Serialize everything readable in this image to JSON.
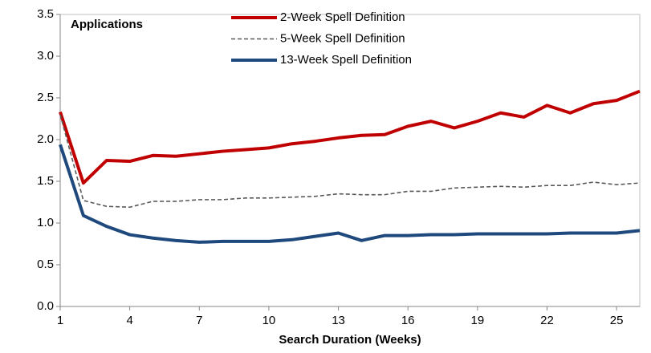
{
  "chart_data": {
    "type": "line",
    "annotation": "Applications",
    "x_label": "Search Duration (Weeks)",
    "x": [
      1,
      2,
      3,
      4,
      5,
      6,
      7,
      8,
      9,
      10,
      11,
      12,
      13,
      14,
      15,
      16,
      17,
      18,
      19,
      20,
      21,
      22,
      23,
      24,
      25,
      26
    ],
    "xlim": [
      1,
      26
    ],
    "xticks": [
      1,
      4,
      7,
      10,
      13,
      16,
      19,
      22,
      25
    ],
    "ylim": [
      0,
      3.5
    ],
    "yticks": [
      {
        "value": 0,
        "label": "0.0"
      },
      0.5,
      {
        "value": 1,
        "label": "1.0"
      },
      1.5,
      {
        "value": 2,
        "label": "2.0"
      },
      2.5,
      {
        "value": 3,
        "label": "3.0"
      },
      3.5
    ],
    "grid": false,
    "series": [
      {
        "name": "2-Week Spell Definition",
        "color": "#c00000",
        "dashed": false,
        "values": [
          2.33,
          1.48,
          1.75,
          1.74,
          1.81,
          1.8,
          1.83,
          1.86,
          1.88,
          1.9,
          1.95,
          1.98,
          2.02,
          2.05,
          2.06,
          2.16,
          2.22,
          2.14,
          2.22,
          2.32,
          2.27,
          2.41,
          2.32,
          2.43,
          2.47,
          2.58
        ]
      },
      {
        "name": "5-Week Spell Definition",
        "color": "#595959",
        "dashed": true,
        "values": [
          2.3,
          1.27,
          1.2,
          1.19,
          1.26,
          1.26,
          1.28,
          1.28,
          1.3,
          1.3,
          1.31,
          1.32,
          1.35,
          1.34,
          1.34,
          1.38,
          1.38,
          1.42,
          1.43,
          1.44,
          1.43,
          1.45,
          1.45,
          1.49,
          1.46,
          1.48
        ]
      },
      {
        "name": "13-Week Spell Definition",
        "color": "#1f497d",
        "dashed": false,
        "values": [
          1.94,
          1.09,
          0.96,
          0.86,
          0.82,
          0.79,
          0.77,
          0.78,
          0.78,
          0.78,
          0.8,
          0.84,
          0.88,
          0.79,
          0.85,
          0.85,
          0.86,
          0.86,
          0.87,
          0.87,
          0.87,
          0.87,
          0.88,
          0.88,
          0.88,
          0.91
        ]
      }
    ]
  }
}
